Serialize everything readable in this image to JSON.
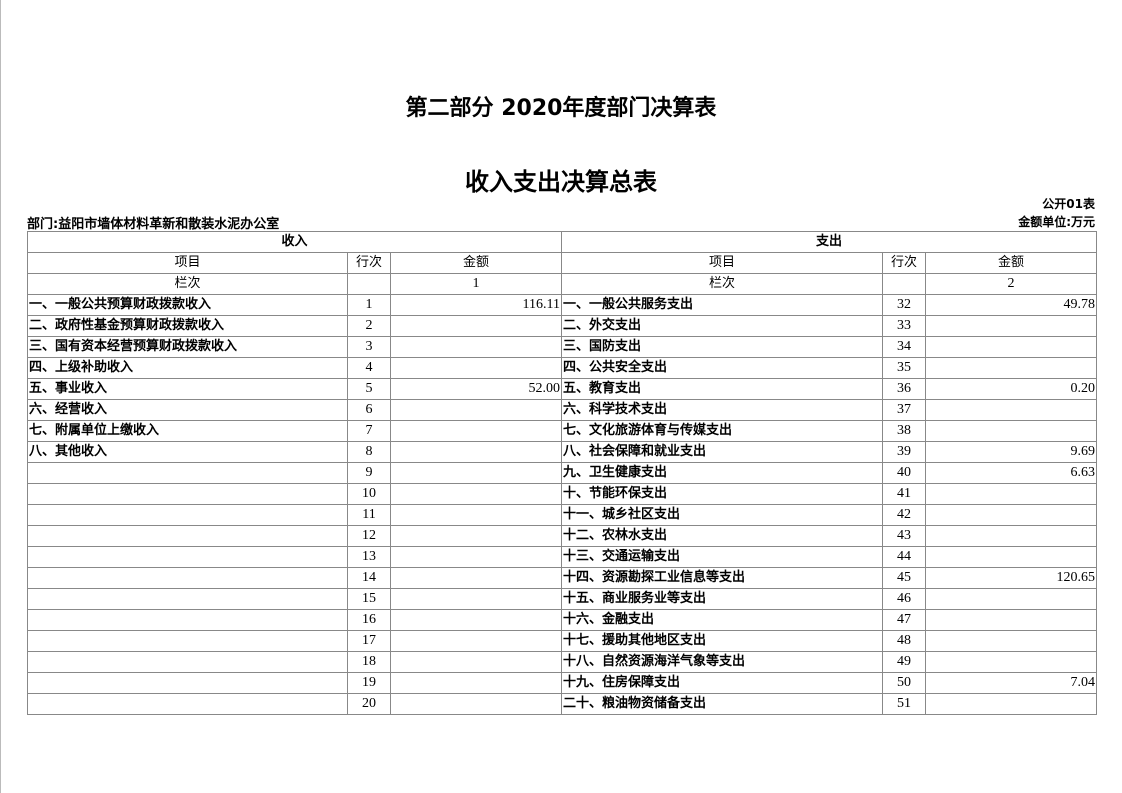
{
  "title": "第二部分 2020年度部门决算表",
  "subtitle": "收入支出决算总表",
  "table_no": "公开01表",
  "department": "部门:益阳市墙体材料革新和散装水泥办公室",
  "unit": "金额单位:万元",
  "headers": {
    "income": "收入",
    "expense": "支出",
    "item": "项目",
    "line_no": "行次",
    "amount": "金额",
    "column_no": "栏次",
    "income_col": "1",
    "expense_col": "2"
  },
  "rows": [
    {
      "in_item": "一、一般公共预算财政拨款收入",
      "in_no": "1",
      "in_amt": "116.11",
      "ex_item": "一、一般公共服务支出",
      "ex_no": "32",
      "ex_amt": "49.78"
    },
    {
      "in_item": "二、政府性基金预算财政拨款收入",
      "in_no": "2",
      "in_amt": "",
      "ex_item": "二、外交支出",
      "ex_no": "33",
      "ex_amt": ""
    },
    {
      "in_item": "三、国有资本经营预算财政拨款收入",
      "in_no": "3",
      "in_amt": "",
      "ex_item": "三、国防支出",
      "ex_no": "34",
      "ex_amt": ""
    },
    {
      "in_item": "四、上级补助收入",
      "in_no": "4",
      "in_amt": "",
      "ex_item": "四、公共安全支出",
      "ex_no": "35",
      "ex_amt": ""
    },
    {
      "in_item": "五、事业收入",
      "in_no": "5",
      "in_amt": "52.00",
      "ex_item": "五、教育支出",
      "ex_no": "36",
      "ex_amt": "0.20"
    },
    {
      "in_item": "六、经营收入",
      "in_no": "6",
      "in_amt": "",
      "ex_item": "六、科学技术支出",
      "ex_no": "37",
      "ex_amt": ""
    },
    {
      "in_item": "七、附属单位上缴收入",
      "in_no": "7",
      "in_amt": "",
      "ex_item": "七、文化旅游体育与传媒支出",
      "ex_no": "38",
      "ex_amt": ""
    },
    {
      "in_item": "八、其他收入",
      "in_no": "8",
      "in_amt": "",
      "ex_item": "八、社会保障和就业支出",
      "ex_no": "39",
      "ex_amt": "9.69"
    },
    {
      "in_item": "",
      "in_no": "9",
      "in_amt": "",
      "ex_item": "九、卫生健康支出",
      "ex_no": "40",
      "ex_amt": "6.63"
    },
    {
      "in_item": "",
      "in_no": "10",
      "in_amt": "",
      "ex_item": "十、节能环保支出",
      "ex_no": "41",
      "ex_amt": ""
    },
    {
      "in_item": "",
      "in_no": "11",
      "in_amt": "",
      "ex_item": "十一、城乡社区支出",
      "ex_no": "42",
      "ex_amt": ""
    },
    {
      "in_item": "",
      "in_no": "12",
      "in_amt": "",
      "ex_item": "十二、农林水支出",
      "ex_no": "43",
      "ex_amt": ""
    },
    {
      "in_item": "",
      "in_no": "13",
      "in_amt": "",
      "ex_item": "十三、交通运输支出",
      "ex_no": "44",
      "ex_amt": ""
    },
    {
      "in_item": "",
      "in_no": "14",
      "in_amt": "",
      "ex_item": "十四、资源勘探工业信息等支出",
      "ex_no": "45",
      "ex_amt": "120.65"
    },
    {
      "in_item": "",
      "in_no": "15",
      "in_amt": "",
      "ex_item": "十五、商业服务业等支出",
      "ex_no": "46",
      "ex_amt": ""
    },
    {
      "in_item": "",
      "in_no": "16",
      "in_amt": "",
      "ex_item": "十六、金融支出",
      "ex_no": "47",
      "ex_amt": ""
    },
    {
      "in_item": "",
      "in_no": "17",
      "in_amt": "",
      "ex_item": "十七、援助其他地区支出",
      "ex_no": "48",
      "ex_amt": ""
    },
    {
      "in_item": "",
      "in_no": "18",
      "in_amt": "",
      "ex_item": "十八、自然资源海洋气象等支出",
      "ex_no": "49",
      "ex_amt": ""
    },
    {
      "in_item": "",
      "in_no": "19",
      "in_amt": "",
      "ex_item": "十九、住房保障支出",
      "ex_no": "50",
      "ex_amt": "7.04"
    },
    {
      "in_item": "",
      "in_no": "20",
      "in_amt": "",
      "ex_item": "二十、粮油物资储备支出",
      "ex_no": "51",
      "ex_amt": ""
    }
  ]
}
